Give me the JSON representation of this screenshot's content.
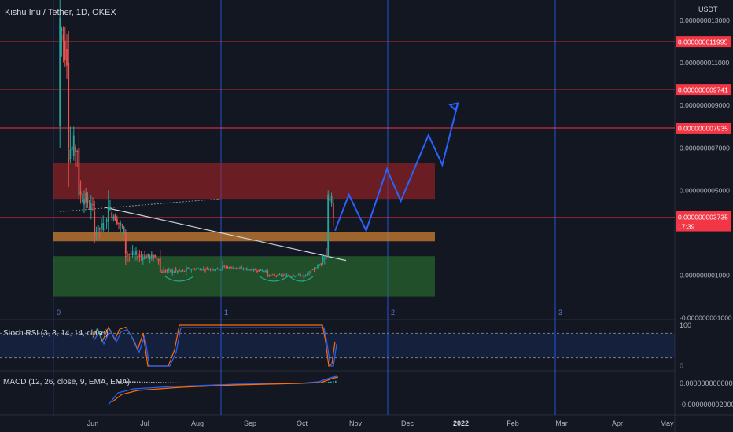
{
  "header": {
    "title": "Kishu Inu / Tether, 1D, OKEX"
  },
  "price_scale": {
    "currency": "USDT",
    "ticks": [
      "0.000000013000",
      "0.000000011000",
      "0.000000009000",
      "0.000000007000",
      "0.000000005000",
      "0.000000001000",
      "-0.000000001000"
    ],
    "tick_values": [
      13,
      11,
      9,
      7,
      5,
      1,
      -1
    ],
    "hidden_tick": "0.000000003000"
  },
  "levels": [
    {
      "label": "0.000000011995",
      "value": 11.995,
      "color": "#f23645"
    },
    {
      "label": "0.000000009741",
      "value": 9.741,
      "color": "#f23645"
    },
    {
      "label": "0.000000007935",
      "value": 7.935,
      "color": "#f23645"
    }
  ],
  "current_price": {
    "label": "0.000000003735",
    "value": 3.735,
    "countdown": "17:39",
    "color": "#f23645"
  },
  "zones": [
    {
      "name": "resistance-zone",
      "from": 4.6,
      "to": 6.3,
      "color": "rgba(178,34,34,0.55)"
    },
    {
      "name": "pivot-zone",
      "from": 2.6,
      "to": 3.05,
      "color": "rgba(205,127,50,0.75)"
    },
    {
      "name": "support-zone",
      "from": 0.0,
      "to": 1.9,
      "color": "rgba(46,125,50,0.55)"
    }
  ],
  "cycle_labels": [
    "0",
    "1",
    "2",
    "3"
  ],
  "time_axis": [
    "Jun",
    "Jul",
    "Aug",
    "Sep",
    "Oct",
    "Nov",
    "Dec",
    "2022",
    "Feb",
    "Mar",
    "Apr",
    "May"
  ],
  "stoch_rsi": {
    "label": "Stoch RSI (3, 3, 14, 14, close)",
    "scale": [
      "100",
      "0"
    ],
    "upper": 80,
    "lower": 20
  },
  "macd": {
    "label": "MACD (12, 26, close, 9, EMA, EMA)",
    "scale": [
      "0.000000000000",
      "-0.000000002000"
    ]
  },
  "chart_data": {
    "type": "candlestick",
    "title": "Kishu Inu / Tether, 1D, OKEX",
    "y_unit": "USDT (×1e-9)",
    "ylim": [
      -1.3,
      14
    ],
    "x_range": [
      "2021-05-13",
      "2022-05-08"
    ],
    "ohlc_summary": [
      {
        "date": "2021-05-13",
        "open": 8.0,
        "high": 14.0,
        "low": 7.0,
        "close": 13.0
      },
      {
        "date": "2021-05-18",
        "open": 11.0,
        "high": 12.5,
        "low": 6.5,
        "close": 7.0
      },
      {
        "date": "2021-05-24",
        "open": 7.0,
        "high": 8.0,
        "low": 4.5,
        "close": 5.0
      },
      {
        "date": "2021-06-02",
        "open": 4.0,
        "high": 4.5,
        "low": 2.5,
        "close": 3.0
      },
      {
        "date": "2021-06-10",
        "open": 3.5,
        "high": 5.0,
        "low": 3.0,
        "close": 4.2
      },
      {
        "date": "2021-06-20",
        "open": 3.0,
        "high": 3.2,
        "low": 1.5,
        "close": 2.0
      },
      {
        "date": "2021-07-10",
        "open": 1.8,
        "high": 2.2,
        "low": 1.1,
        "close": 1.2
      },
      {
        "date": "2021-07-25",
        "open": 1.2,
        "high": 1.5,
        "low": 1.0,
        "close": 1.3
      },
      {
        "date": "2021-08-15",
        "open": 1.3,
        "high": 1.7,
        "low": 1.2,
        "close": 1.4
      },
      {
        "date": "2021-09-10",
        "open": 1.2,
        "high": 1.3,
        "low": 0.9,
        "close": 1.0
      },
      {
        "date": "2021-10-01",
        "open": 1.0,
        "high": 1.2,
        "low": 0.7,
        "close": 0.9
      },
      {
        "date": "2021-10-12",
        "open": 1.6,
        "high": 2.0,
        "low": 1.5,
        "close": 1.9
      },
      {
        "date": "2021-10-15",
        "open": 1.9,
        "high": 5.0,
        "low": 1.8,
        "close": 4.8
      },
      {
        "date": "2021-10-18",
        "open": 4.4,
        "high": 4.6,
        "low": 3.3,
        "close": 3.735
      }
    ],
    "projection_path": [
      {
        "date": "2021-10-19",
        "value": 3.1
      },
      {
        "date": "2021-10-27",
        "value": 4.8
      },
      {
        "date": "2021-11-06",
        "value": 3.1
      },
      {
        "date": "2021-11-18",
        "value": 6.0
      },
      {
        "date": "2021-11-26",
        "value": 4.5
      },
      {
        "date": "2021-12-12",
        "value": 7.6
      },
      {
        "date": "2021-12-20",
        "value": 6.2
      },
      {
        "date": "2021-12-29",
        "value": 9.1
      }
    ],
    "trendline_down": [
      {
        "date": "2021-06-08",
        "value": 4.2
      },
      {
        "date": "2021-10-25",
        "value": 1.7
      }
    ],
    "trendline_dotted": [
      {
        "date": "2021-05-13",
        "value": 4.0
      },
      {
        "date": "2021-08-01",
        "value": 4.6
      }
    ]
  },
  "colors": {
    "up": "#26a69a",
    "down": "#ef5350",
    "projection": "#2962ff",
    "fib_line": "#2962ff",
    "macd": "#2962ff",
    "signal": "#ff6d00",
    "rsi_k": "#2962ff",
    "rsi_d": "#ff6d00"
  }
}
